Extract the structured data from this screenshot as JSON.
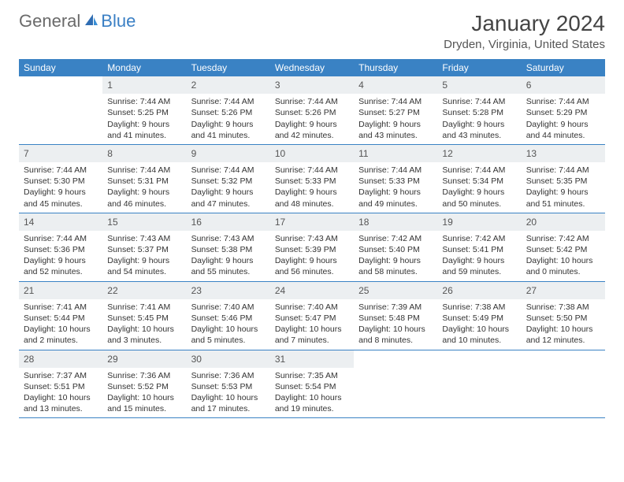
{
  "brand": {
    "name_part1": "General",
    "name_part2": "Blue"
  },
  "header": {
    "title": "January 2024",
    "location": "Dryden, Virginia, United States"
  },
  "colors": {
    "header_bg": "#3a82c4",
    "header_fg": "#ffffff",
    "daynum_bg": "#eceff1",
    "row_border": "#3a82c4",
    "logo_gray": "#6a6a6a",
    "logo_blue": "#3a7fc4"
  },
  "calendar": {
    "day_headers": [
      "Sunday",
      "Monday",
      "Tuesday",
      "Wednesday",
      "Thursday",
      "Friday",
      "Saturday"
    ],
    "first_weekday_index": 1,
    "days": [
      {
        "n": 1,
        "sunrise": "7:44 AM",
        "sunset": "5:25 PM",
        "daylight": "9 hours and 41 minutes."
      },
      {
        "n": 2,
        "sunrise": "7:44 AM",
        "sunset": "5:26 PM",
        "daylight": "9 hours and 41 minutes."
      },
      {
        "n": 3,
        "sunrise": "7:44 AM",
        "sunset": "5:26 PM",
        "daylight": "9 hours and 42 minutes."
      },
      {
        "n": 4,
        "sunrise": "7:44 AM",
        "sunset": "5:27 PM",
        "daylight": "9 hours and 43 minutes."
      },
      {
        "n": 5,
        "sunrise": "7:44 AM",
        "sunset": "5:28 PM",
        "daylight": "9 hours and 43 minutes."
      },
      {
        "n": 6,
        "sunrise": "7:44 AM",
        "sunset": "5:29 PM",
        "daylight": "9 hours and 44 minutes."
      },
      {
        "n": 7,
        "sunrise": "7:44 AM",
        "sunset": "5:30 PM",
        "daylight": "9 hours and 45 minutes."
      },
      {
        "n": 8,
        "sunrise": "7:44 AM",
        "sunset": "5:31 PM",
        "daylight": "9 hours and 46 minutes."
      },
      {
        "n": 9,
        "sunrise": "7:44 AM",
        "sunset": "5:32 PM",
        "daylight": "9 hours and 47 minutes."
      },
      {
        "n": 10,
        "sunrise": "7:44 AM",
        "sunset": "5:33 PM",
        "daylight": "9 hours and 48 minutes."
      },
      {
        "n": 11,
        "sunrise": "7:44 AM",
        "sunset": "5:33 PM",
        "daylight": "9 hours and 49 minutes."
      },
      {
        "n": 12,
        "sunrise": "7:44 AM",
        "sunset": "5:34 PM",
        "daylight": "9 hours and 50 minutes."
      },
      {
        "n": 13,
        "sunrise": "7:44 AM",
        "sunset": "5:35 PM",
        "daylight": "9 hours and 51 minutes."
      },
      {
        "n": 14,
        "sunrise": "7:44 AM",
        "sunset": "5:36 PM",
        "daylight": "9 hours and 52 minutes."
      },
      {
        "n": 15,
        "sunrise": "7:43 AM",
        "sunset": "5:37 PM",
        "daylight": "9 hours and 54 minutes."
      },
      {
        "n": 16,
        "sunrise": "7:43 AM",
        "sunset": "5:38 PM",
        "daylight": "9 hours and 55 minutes."
      },
      {
        "n": 17,
        "sunrise": "7:43 AM",
        "sunset": "5:39 PM",
        "daylight": "9 hours and 56 minutes."
      },
      {
        "n": 18,
        "sunrise": "7:42 AM",
        "sunset": "5:40 PM",
        "daylight": "9 hours and 58 minutes."
      },
      {
        "n": 19,
        "sunrise": "7:42 AM",
        "sunset": "5:41 PM",
        "daylight": "9 hours and 59 minutes."
      },
      {
        "n": 20,
        "sunrise": "7:42 AM",
        "sunset": "5:42 PM",
        "daylight": "10 hours and 0 minutes."
      },
      {
        "n": 21,
        "sunrise": "7:41 AM",
        "sunset": "5:44 PM",
        "daylight": "10 hours and 2 minutes."
      },
      {
        "n": 22,
        "sunrise": "7:41 AM",
        "sunset": "5:45 PM",
        "daylight": "10 hours and 3 minutes."
      },
      {
        "n": 23,
        "sunrise": "7:40 AM",
        "sunset": "5:46 PM",
        "daylight": "10 hours and 5 minutes."
      },
      {
        "n": 24,
        "sunrise": "7:40 AM",
        "sunset": "5:47 PM",
        "daylight": "10 hours and 7 minutes."
      },
      {
        "n": 25,
        "sunrise": "7:39 AM",
        "sunset": "5:48 PM",
        "daylight": "10 hours and 8 minutes."
      },
      {
        "n": 26,
        "sunrise": "7:38 AM",
        "sunset": "5:49 PM",
        "daylight": "10 hours and 10 minutes."
      },
      {
        "n": 27,
        "sunrise": "7:38 AM",
        "sunset": "5:50 PM",
        "daylight": "10 hours and 12 minutes."
      },
      {
        "n": 28,
        "sunrise": "7:37 AM",
        "sunset": "5:51 PM",
        "daylight": "10 hours and 13 minutes."
      },
      {
        "n": 29,
        "sunrise": "7:36 AM",
        "sunset": "5:52 PM",
        "daylight": "10 hours and 15 minutes."
      },
      {
        "n": 30,
        "sunrise": "7:36 AM",
        "sunset": "5:53 PM",
        "daylight": "10 hours and 17 minutes."
      },
      {
        "n": 31,
        "sunrise": "7:35 AM",
        "sunset": "5:54 PM",
        "daylight": "10 hours and 19 minutes."
      }
    ],
    "labels": {
      "sunrise": "Sunrise:",
      "sunset": "Sunset:",
      "daylight": "Daylight:"
    }
  }
}
